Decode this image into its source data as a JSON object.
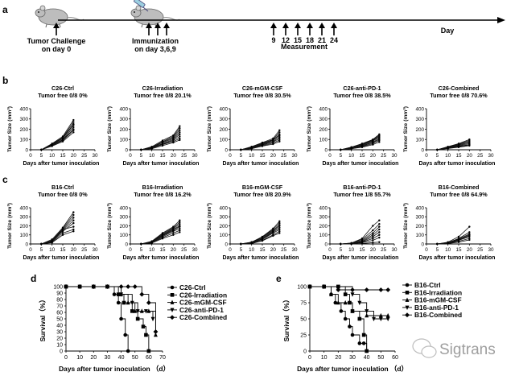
{
  "panel_letters": {
    "a": "a",
    "b": "b",
    "c": "c",
    "d": "d",
    "e": "e"
  },
  "timeline": {
    "challenge_label_1": "Tumor Challenge",
    "challenge_label_2": "on day 0",
    "immunization_label_1": "Immunization",
    "immunization_label_2": "on day 3,6,9",
    "measurement_days": [
      "9",
      "12",
      "15",
      "18",
      "21",
      "24"
    ],
    "measurement_label": "Measurement",
    "axis_label": "Day"
  },
  "growth_common": {
    "ylabel": "Tumor Size",
    "yunit": "(mm³)",
    "xlabel": "Days after tumor inoculation",
    "xticks": [
      "0",
      "5",
      "10",
      "15",
      "20",
      "25",
      "30"
    ],
    "yticks": [
      "0",
      "100",
      "200",
      "300",
      "400"
    ]
  },
  "survival_common": {
    "ylabel": "Survival（%）",
    "xlabel": "Days after tumor inoculation （d）"
  },
  "watermark": "Sigtrans",
  "chart_data": [
    {
      "id": "c26-ctrl",
      "type": "line",
      "row": "b",
      "title1": "C26-Ctrl",
      "title2": "Tumor free 0/8  0%",
      "xlim": [
        0,
        30
      ],
      "ylim": [
        0,
        400
      ],
      "x": [
        5,
        10,
        15,
        20
      ],
      "series": [
        [
          0,
          60,
          130,
          290
        ],
        [
          0,
          55,
          120,
          270
        ],
        [
          0,
          50,
          115,
          250
        ],
        [
          0,
          50,
          110,
          240
        ],
        [
          0,
          45,
          100,
          220
        ],
        [
          0,
          40,
          95,
          200
        ],
        [
          0,
          40,
          90,
          190
        ],
        [
          0,
          35,
          80,
          170
        ]
      ]
    },
    {
      "id": "c26-irr",
      "type": "line",
      "row": "b",
      "title1": "C26-Irradiation",
      "title2": "Tumor free 0/8  20.1%",
      "xlim": [
        0,
        30
      ],
      "ylim": [
        0,
        400
      ],
      "x": [
        5,
        10,
        15,
        20,
        23
      ],
      "series": [
        [
          0,
          30,
          90,
          140,
          230
        ],
        [
          0,
          25,
          80,
          130,
          210
        ],
        [
          0,
          25,
          75,
          120,
          190
        ],
        [
          0,
          20,
          70,
          110,
          170
        ],
        [
          0,
          20,
          60,
          100,
          150
        ],
        [
          0,
          15,
          55,
          90,
          130
        ],
        [
          0,
          15,
          50,
          80,
          110
        ],
        [
          0,
          10,
          40,
          70,
          95
        ]
      ]
    },
    {
      "id": "c26-mgm",
      "type": "line",
      "row": "b",
      "title1": "C26-mGM-CSF",
      "title2": "Tumor free 0/8  30.5%",
      "xlim": [
        0,
        30
      ],
      "ylim": [
        0,
        400
      ],
      "x": [
        5,
        10,
        15,
        20,
        23
      ],
      "series": [
        [
          0,
          30,
          70,
          110,
          190
        ],
        [
          0,
          25,
          65,
          100,
          170
        ],
        [
          0,
          25,
          60,
          95,
          150
        ],
        [
          0,
          20,
          55,
          90,
          140
        ],
        [
          0,
          20,
          50,
          80,
          125
        ],
        [
          0,
          15,
          45,
          75,
          110
        ],
        [
          0,
          15,
          40,
          65,
          95
        ],
        [
          0,
          10,
          35,
          55,
          80
        ]
      ]
    },
    {
      "id": "c26-pd1",
      "type": "line",
      "row": "b",
      "title1": "C26-anti-PD-1",
      "title2": "Tumor free 0/8  38.5%",
      "xlim": [
        0,
        30
      ],
      "ylim": [
        0,
        400
      ],
      "x": [
        5,
        10,
        15,
        20,
        23
      ],
      "series": [
        [
          0,
          25,
          60,
          100,
          150
        ],
        [
          0,
          25,
          55,
          95,
          140
        ],
        [
          0,
          20,
          50,
          90,
          130
        ],
        [
          0,
          20,
          45,
          85,
          120
        ],
        [
          0,
          15,
          40,
          75,
          110
        ],
        [
          0,
          15,
          35,
          70,
          100
        ],
        [
          0,
          10,
          30,
          60,
          90
        ],
        [
          0,
          10,
          25,
          50,
          75
        ]
      ]
    },
    {
      "id": "c26-comb",
      "type": "line",
      "row": "b",
      "title1": "C26-Combined",
      "title2": "Tumor free 0/8  70.6%",
      "xlim": [
        0,
        30
      ],
      "ylim": [
        0,
        400
      ],
      "x": [
        5,
        10,
        15,
        20
      ],
      "series": [
        [
          0,
          30,
          60,
          100
        ],
        [
          0,
          28,
          55,
          90
        ],
        [
          0,
          25,
          50,
          80
        ],
        [
          0,
          22,
          45,
          70
        ],
        [
          0,
          20,
          40,
          60
        ],
        [
          0,
          18,
          35,
          50
        ],
        [
          0,
          15,
          30,
          45
        ],
        [
          0,
          12,
          25,
          40
        ]
      ]
    },
    {
      "id": "b16-ctrl",
      "type": "line",
      "row": "c",
      "title1": "B16-Ctrl",
      "title2": "Tumor free 0/8  0%",
      "xlim": [
        0,
        30
      ],
      "ylim": [
        0,
        400
      ],
      "x": [
        5,
        10,
        15,
        20
      ],
      "series": [
        [
          0,
          50,
          180,
          350
        ],
        [
          0,
          40,
          170,
          320
        ],
        [
          0,
          35,
          160,
          290
        ],
        [
          0,
          30,
          150,
          260
        ],
        [
          0,
          25,
          140,
          230
        ],
        [
          0,
          30,
          160,
          190
        ],
        [
          0,
          20,
          120,
          160
        ],
        [
          0,
          15,
          100,
          140
        ]
      ]
    },
    {
      "id": "b16-irr",
      "type": "line",
      "row": "c",
      "title1": "B16-Irradiation",
      "title2": "Tumor free 0/8  16.2%",
      "xlim": [
        0,
        30
      ],
      "ylim": [
        0,
        400
      ],
      "x": [
        5,
        10,
        15,
        20,
        23
      ],
      "series": [
        [
          0,
          30,
          120,
          190,
          260
        ],
        [
          0,
          25,
          110,
          180,
          240
        ],
        [
          0,
          25,
          100,
          170,
          220
        ],
        [
          0,
          20,
          95,
          160,
          200
        ],
        [
          0,
          20,
          90,
          150,
          190
        ],
        [
          0,
          15,
          80,
          140,
          170
        ],
        [
          0,
          15,
          70,
          120,
          150
        ],
        [
          0,
          10,
          60,
          100,
          130
        ]
      ]
    },
    {
      "id": "b16-mgm",
      "type": "line",
      "row": "c",
      "title1": "B16-mGM-CSF",
      "title2": "Tumor free 0/8  20.9%",
      "xlim": [
        0,
        30
      ],
      "ylim": [
        0,
        400
      ],
      "x": [
        5,
        10,
        15,
        20,
        23
      ],
      "series": [
        [
          0,
          20,
          80,
          170,
          250
        ],
        [
          0,
          20,
          75,
          160,
          230
        ],
        [
          0,
          15,
          70,
          150,
          210
        ],
        [
          0,
          15,
          60,
          140,
          200
        ],
        [
          0,
          10,
          55,
          130,
          180
        ],
        [
          0,
          10,
          50,
          120,
          160
        ],
        [
          0,
          5,
          40,
          100,
          140
        ],
        [
          0,
          5,
          35,
          90,
          120
        ]
      ]
    },
    {
      "id": "b16-pd1",
      "type": "line",
      "row": "c",
      "title1": "B16-anti-PD-1",
      "title2": "Tumor free 1/8  55.7%",
      "xlim": [
        0,
        30
      ],
      "ylim": [
        0,
        400
      ],
      "x": [
        5,
        10,
        15,
        20,
        23
      ],
      "series": [
        [
          0,
          10,
          60,
          200,
          260
        ],
        [
          0,
          10,
          50,
          150,
          220
        ],
        [
          0,
          5,
          40,
          120,
          190
        ],
        [
          0,
          5,
          30,
          100,
          160
        ],
        [
          0,
          5,
          25,
          80,
          130
        ],
        [
          0,
          0,
          20,
          60,
          100
        ],
        [
          0,
          0,
          15,
          40,
          70
        ],
        [
          0,
          0,
          5,
          15,
          20
        ]
      ]
    },
    {
      "id": "b16-comb",
      "type": "line",
      "row": "c",
      "title1": "B16-Combined",
      "title2": "Tumor free 0/8  64.9%",
      "xlim": [
        0,
        30
      ],
      "ylim": [
        0,
        400
      ],
      "x": [
        5,
        10,
        15,
        20
      ],
      "series": [
        [
          0,
          20,
          80,
          190
        ],
        [
          0,
          15,
          60,
          130
        ],
        [
          0,
          15,
          55,
          110
        ],
        [
          0,
          10,
          50,
          100
        ],
        [
          0,
          10,
          45,
          90
        ],
        [
          0,
          5,
          40,
          80
        ],
        [
          0,
          5,
          30,
          60
        ],
        [
          0,
          5,
          20,
          45
        ]
      ]
    },
    {
      "id": "surv-c26",
      "type": "line",
      "panel": "d",
      "xlim": [
        0,
        70
      ],
      "ylim": [
        0,
        100
      ],
      "xticks": [
        0,
        10,
        20,
        30,
        40,
        50,
        60,
        70
      ],
      "yticks": [
        0,
        10,
        20,
        30,
        40,
        50,
        60,
        70,
        80,
        90,
        100
      ],
      "series": [
        {
          "name": "C26-Ctrl",
          "marker": "circle",
          "x": [
            0,
            10,
            20,
            30,
            35,
            38,
            40,
            43,
            45
          ],
          "y": [
            100,
            100,
            100,
            100,
            88,
            75,
            50,
            25,
            0
          ]
        },
        {
          "name": "C26-Irradiation",
          "marker": "square",
          "x": [
            0,
            10,
            20,
            30,
            38,
            42,
            48,
            52,
            56,
            58,
            60
          ],
          "y": [
            100,
            100,
            100,
            100,
            88,
            75,
            62,
            50,
            38,
            25,
            0
          ]
        },
        {
          "name": "C26-mGM-CSF",
          "marker": "triangle-up",
          "x": [
            0,
            10,
            20,
            30,
            40,
            45,
            50,
            55,
            60,
            65
          ],
          "y": [
            100,
            100,
            100,
            100,
            88,
            75,
            62,
            62,
            62,
            25
          ]
        },
        {
          "name": "C26-anti-PD-1",
          "marker": "triangle-down",
          "x": [
            0,
            10,
            20,
            30,
            40,
            48,
            52,
            58,
            63
          ],
          "y": [
            100,
            100,
            100,
            100,
            88,
            75,
            62,
            62,
            50
          ]
        },
        {
          "name": "C26-Combined",
          "marker": "diamond",
          "x": [
            0,
            10,
            20,
            30,
            40,
            45,
            50,
            55,
            60,
            65
          ],
          "y": [
            100,
            100,
            100,
            100,
            100,
            100,
            100,
            88,
            75,
            30
          ]
        }
      ]
    },
    {
      "id": "surv-b16",
      "type": "line",
      "panel": "e",
      "xlim": [
        0,
        60
      ],
      "ylim": [
        0,
        100
      ],
      "xticks": [
        0,
        10,
        20,
        30,
        40,
        50,
        60
      ],
      "yticks": [
        0,
        25,
        50,
        75,
        100
      ],
      "series": [
        {
          "name": "B16-Ctrl",
          "marker": "circle",
          "x": [
            0,
            10,
            15,
            18,
            22,
            25,
            28,
            30,
            35,
            38,
            40
          ],
          "y": [
            100,
            100,
            88,
            75,
            62,
            50,
            38,
            25,
            12,
            12,
            0
          ]
        },
        {
          "name": "B16-Irradiation",
          "marker": "square",
          "x": [
            0,
            10,
            20,
            25,
            28,
            30,
            35,
            38,
            40
          ],
          "y": [
            100,
            100,
            100,
            88,
            75,
            62,
            50,
            25,
            0
          ]
        },
        {
          "name": "B16-mGM-CSF",
          "marker": "triangle-up",
          "x": [
            0,
            10,
            15,
            20,
            25,
            30,
            40,
            50,
            55
          ],
          "y": [
            100,
            100,
            88,
            75,
            75,
            62,
            55,
            55,
            55
          ]
        },
        {
          "name": "B16-anti-PD-1",
          "marker": "triangle-down",
          "x": [
            0,
            10,
            20,
            30,
            35,
            40,
            45,
            50,
            55
          ],
          "y": [
            100,
            100,
            100,
            88,
            75,
            62,
            50,
            50,
            50
          ]
        },
        {
          "name": "B16-Combined",
          "marker": "diamond",
          "x": [
            0,
            10,
            20,
            30,
            40,
            50,
            55
          ],
          "y": [
            100,
            100,
            95,
            95,
            95,
            95,
            95
          ]
        }
      ]
    }
  ]
}
